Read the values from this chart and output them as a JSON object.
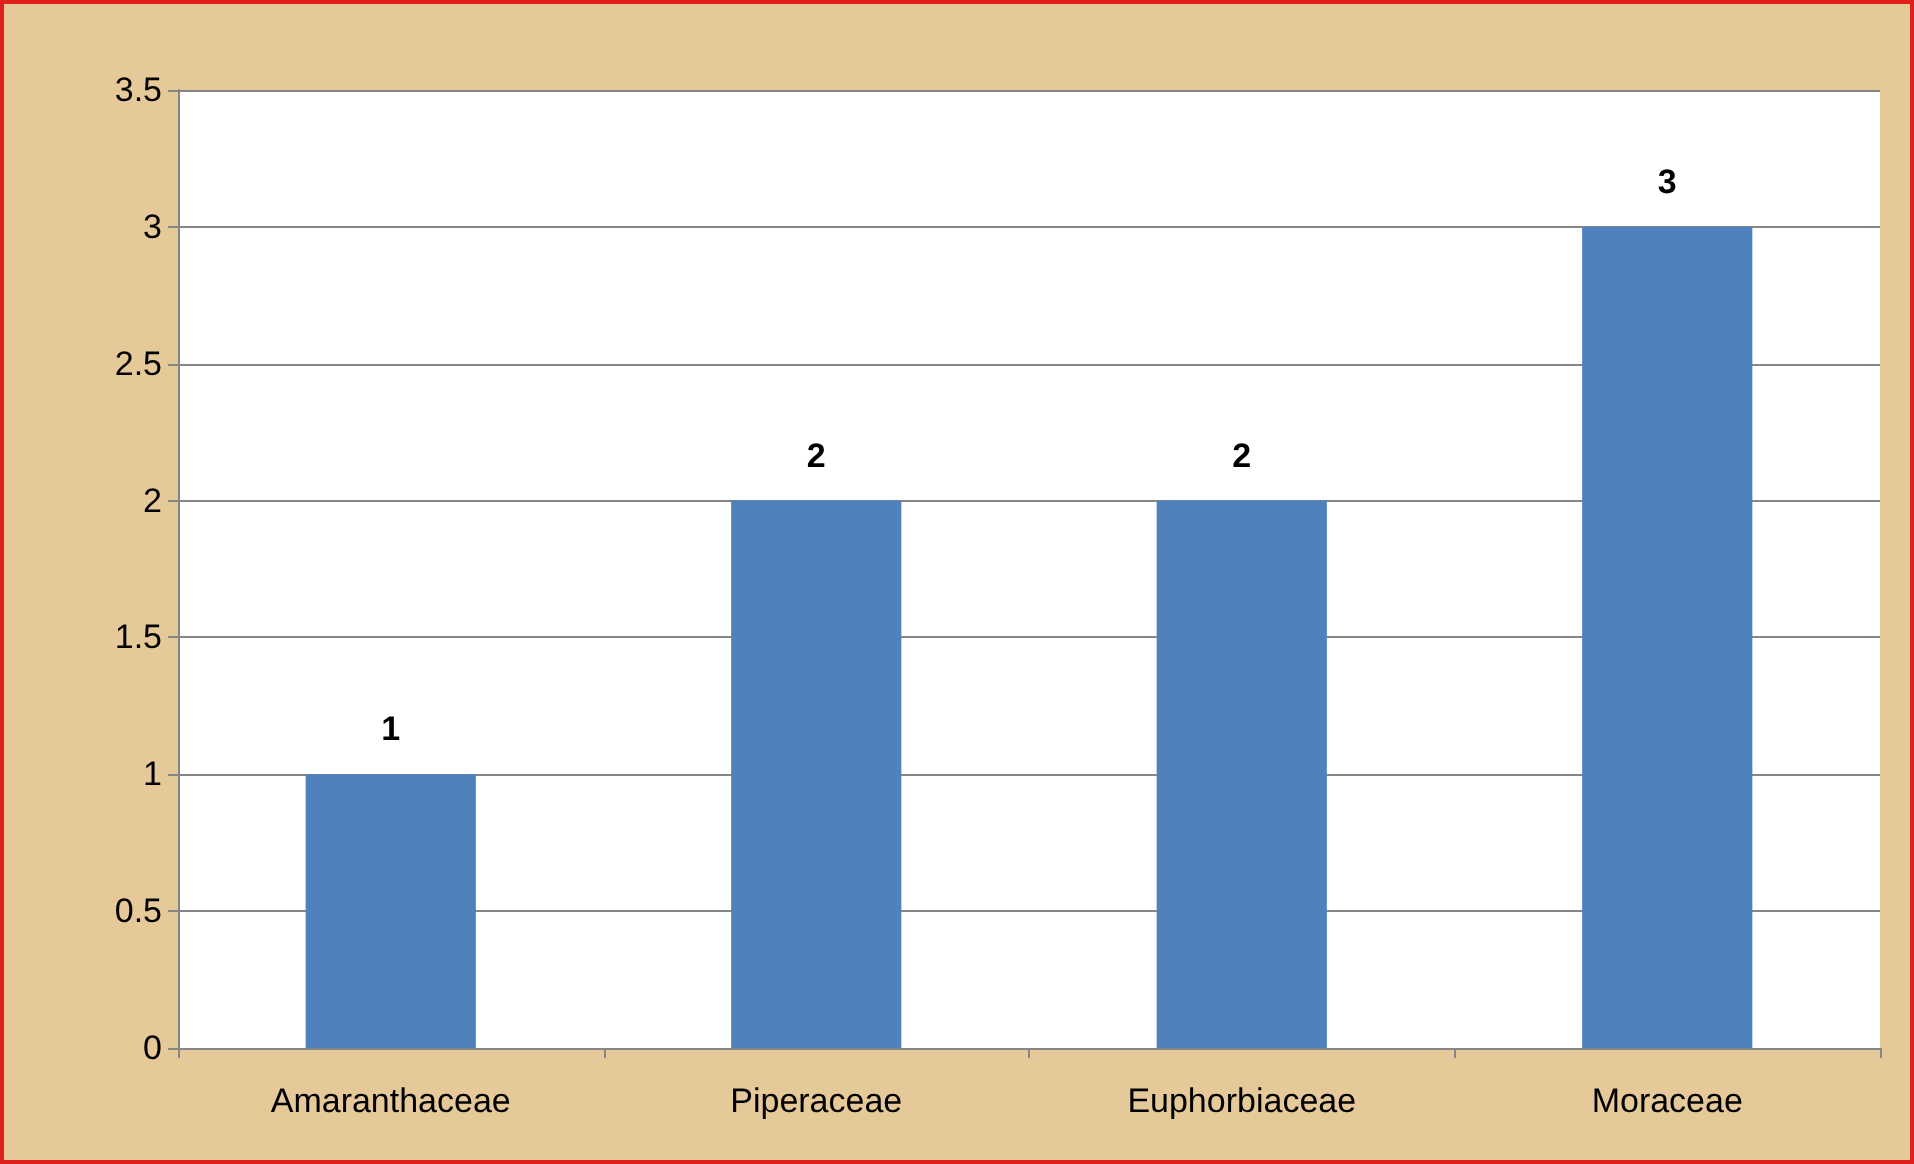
{
  "chart_data": {
    "type": "bar",
    "categories": [
      "Amaranthaceae",
      "Piperaceae",
      "Euphorbiaceae",
      "Moraceae"
    ],
    "values": [
      1,
      2,
      2,
      3
    ],
    "color": "#4f81bd",
    "ylim": [
      0,
      3.5
    ],
    "yticks": [
      0,
      0.5,
      1,
      1.5,
      2,
      2.5,
      3,
      3.5
    ],
    "grid": "y",
    "data_labels": true
  }
}
